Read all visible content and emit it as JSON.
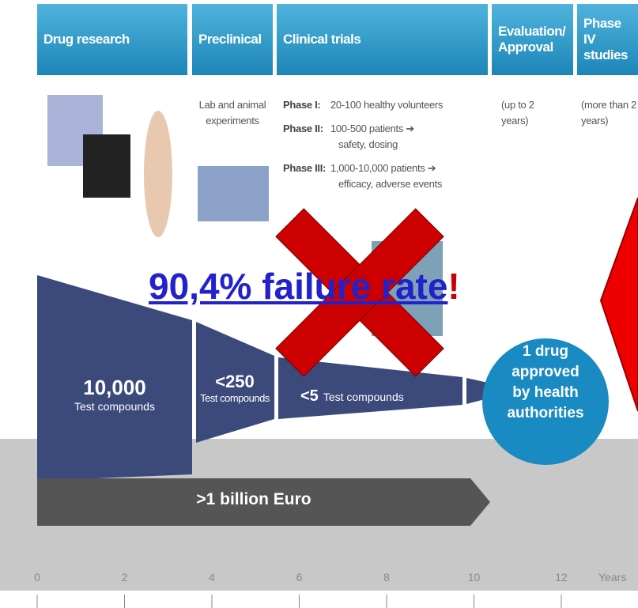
{
  "columns": [
    {
      "title": "Drug research"
    },
    {
      "title": "Preclinical",
      "description": "Lab and animal experiments"
    },
    {
      "title": "Clinical trials"
    },
    {
      "title": "Evaluation/ Approval",
      "description": "(up to 2 years)"
    },
    {
      "title": "Phase IV studies",
      "description": "(more than 2 years)"
    }
  ],
  "phases": [
    {
      "label": "Phase I:",
      "lines": [
        "20-100 healthy volunteers"
      ]
    },
    {
      "label": "Phase II:",
      "lines": [
        "100-500 patients ➔",
        "safety, dosing"
      ]
    },
    {
      "label": "Phase III:",
      "lines": [
        "1,000-10,000 patients ➔",
        "efficacy, adverse events"
      ]
    }
  ],
  "funnel": [
    {
      "count": "10,000",
      "unit": "Test compounds"
    },
    {
      "count": "<250",
      "unit": "Test compounds"
    },
    {
      "count": "<5",
      "unit": "Test compounds"
    }
  ],
  "result": "1 drug approved by health authorities",
  "cost": ">1 billion Euro",
  "timeline": {
    "ticks": [
      0,
      2,
      4,
      6,
      8,
      10,
      12
    ],
    "unit": "Years"
  },
  "overlay": {
    "text": "90,4% failure rate",
    "mark": "!"
  }
}
